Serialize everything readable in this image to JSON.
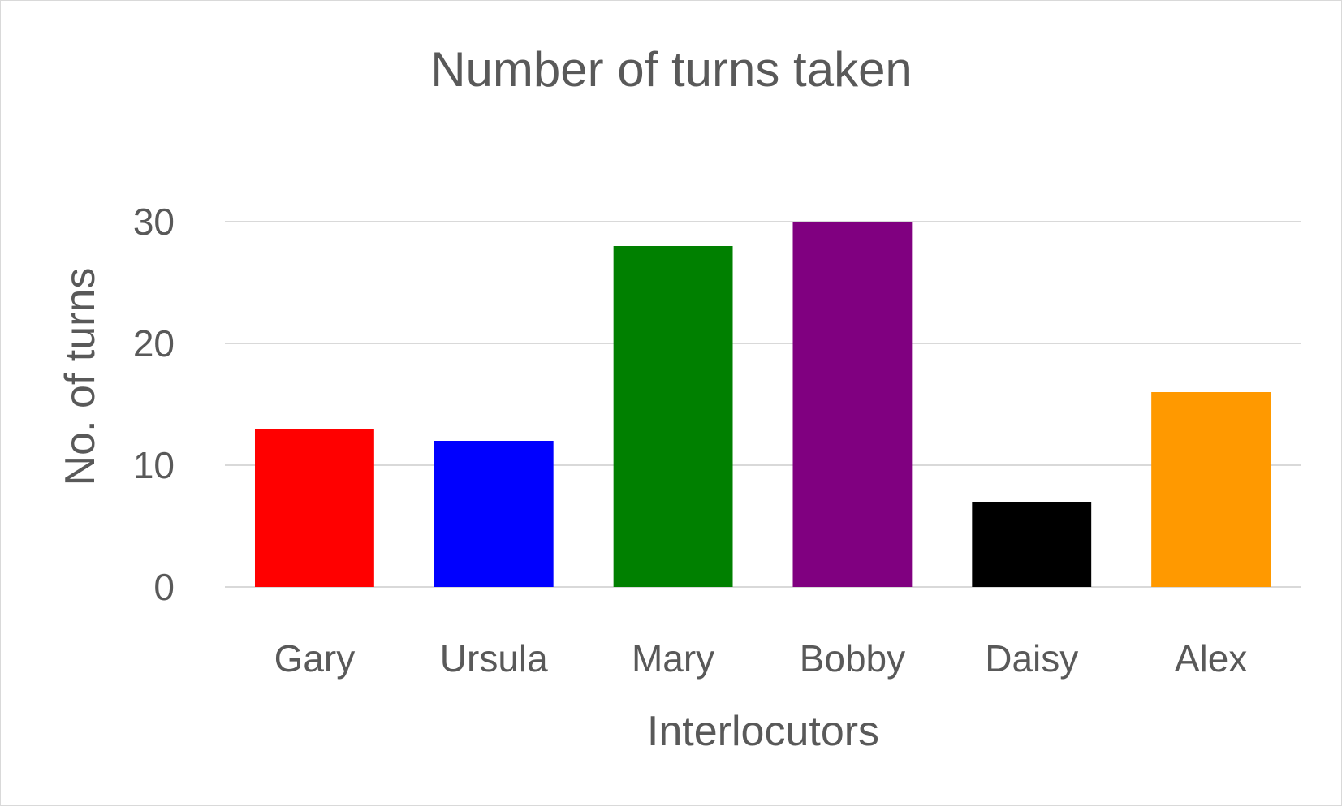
{
  "chart_data": {
    "type": "bar",
    "title": "Number of turns taken",
    "xlabel": "Interlocutors",
    "ylabel": "No. of turns",
    "categories": [
      "Gary",
      "Ursula",
      "Mary",
      "Bobby",
      "Daisy",
      "Alex"
    ],
    "values": [
      13,
      12,
      28,
      30,
      7,
      16
    ],
    "bar_colors": [
      "#ff0000",
      "#0000ff",
      "#008000",
      "#800080",
      "#000000",
      "#ff9900"
    ],
    "ylim": [
      0,
      30
    ],
    "yticks": [
      0,
      10,
      20,
      30
    ],
    "grid": true,
    "legend": "none"
  }
}
